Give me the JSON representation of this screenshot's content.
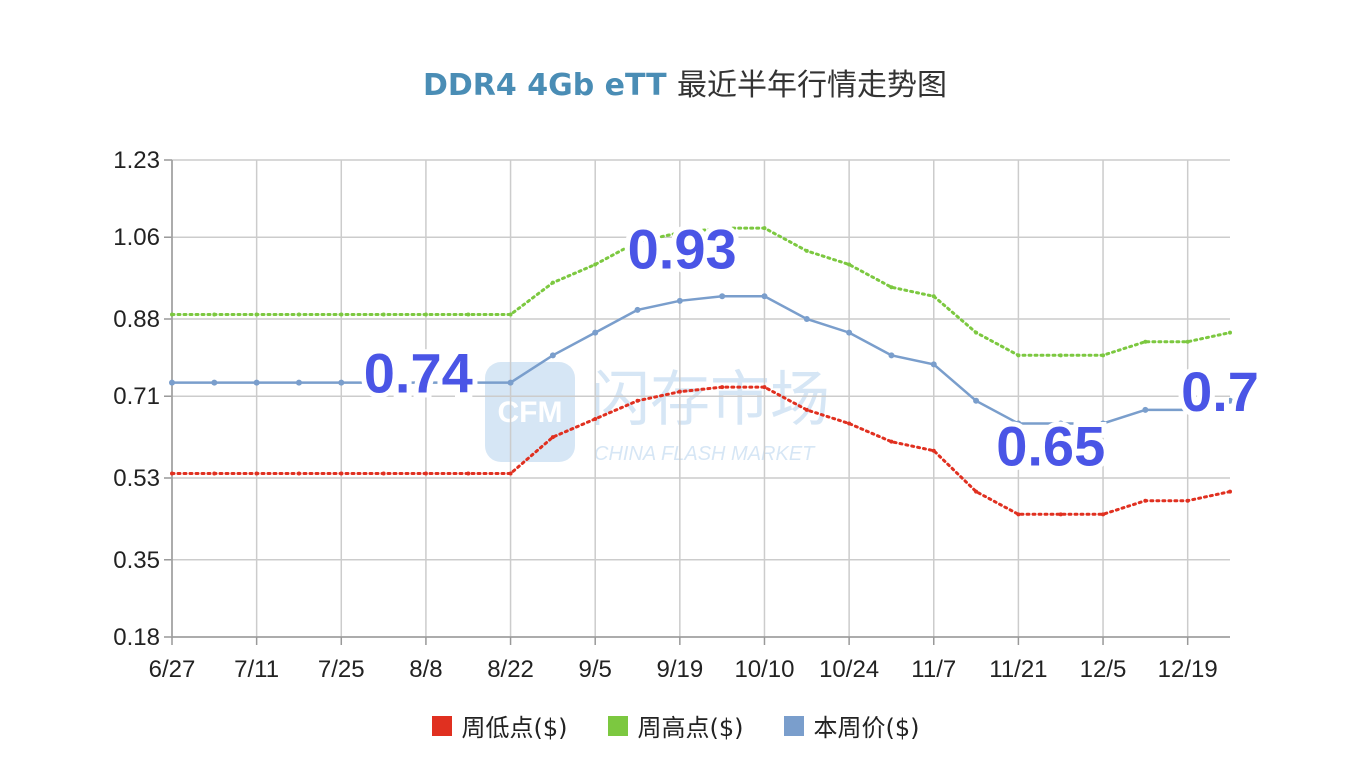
{
  "title_latin": "DDR4 4Gb eTT",
  "title_cn": "最近半年行情走势图",
  "watermark": {
    "cn": "闪存市场",
    "en": "CHINA FLASH MARKET",
    "logo": "CFM"
  },
  "colors": {
    "low": "#e03020",
    "high": "#7cc840",
    "price": "#7a9ecc",
    "callout": "#4a55e6",
    "grid": "#cccccc"
  },
  "chart_data": {
    "type": "line",
    "x_tick_labels": [
      "6/27",
      "7/11",
      "7/25",
      "8/8",
      "8/22",
      "9/5",
      "9/19",
      "10/10",
      "10/24",
      "11/7",
      "11/21",
      "12/5",
      "12/19"
    ],
    "y_ticks": [
      0.18,
      0.35,
      0.53,
      0.71,
      0.88,
      1.06,
      1.23
    ],
    "ylim": [
      0.18,
      1.23
    ],
    "n_points": 26,
    "series": [
      {
        "name": "周低点($)",
        "key": "low",
        "style": "dotted",
        "values": [
          0.54,
          0.54,
          0.54,
          0.54,
          0.54,
          0.54,
          0.54,
          0.54,
          0.54,
          0.62,
          0.66,
          0.7,
          0.72,
          0.73,
          0.73,
          0.68,
          0.65,
          0.61,
          0.59,
          0.5,
          0.45,
          0.45,
          0.45,
          0.48,
          0.48,
          0.5
        ]
      },
      {
        "name": "周高点($)",
        "key": "high",
        "style": "dotted",
        "values": [
          0.89,
          0.89,
          0.89,
          0.89,
          0.89,
          0.89,
          0.89,
          0.89,
          0.89,
          0.96,
          1.0,
          1.05,
          1.07,
          1.08,
          1.08,
          1.03,
          1.0,
          0.95,
          0.93,
          0.85,
          0.8,
          0.8,
          0.8,
          0.83,
          0.83,
          0.85
        ]
      },
      {
        "name": "本周价($)",
        "key": "price",
        "style": "solid",
        "values": [
          0.74,
          0.74,
          0.74,
          0.74,
          0.74,
          0.74,
          0.74,
          0.74,
          0.74,
          0.8,
          0.85,
          0.9,
          0.92,
          0.93,
          0.93,
          0.88,
          0.85,
          0.8,
          0.78,
          0.7,
          0.65,
          0.65,
          0.65,
          0.68,
          0.68,
          0.7
        ]
      }
    ],
    "annotations": [
      {
        "text": "0.74",
        "index": 7
      },
      {
        "text": "0.93",
        "index": 13
      },
      {
        "text": "0.65",
        "index": 21
      },
      {
        "text": "0.7",
        "index": 25
      }
    ],
    "legend_position": "bottom",
    "grid": true
  }
}
